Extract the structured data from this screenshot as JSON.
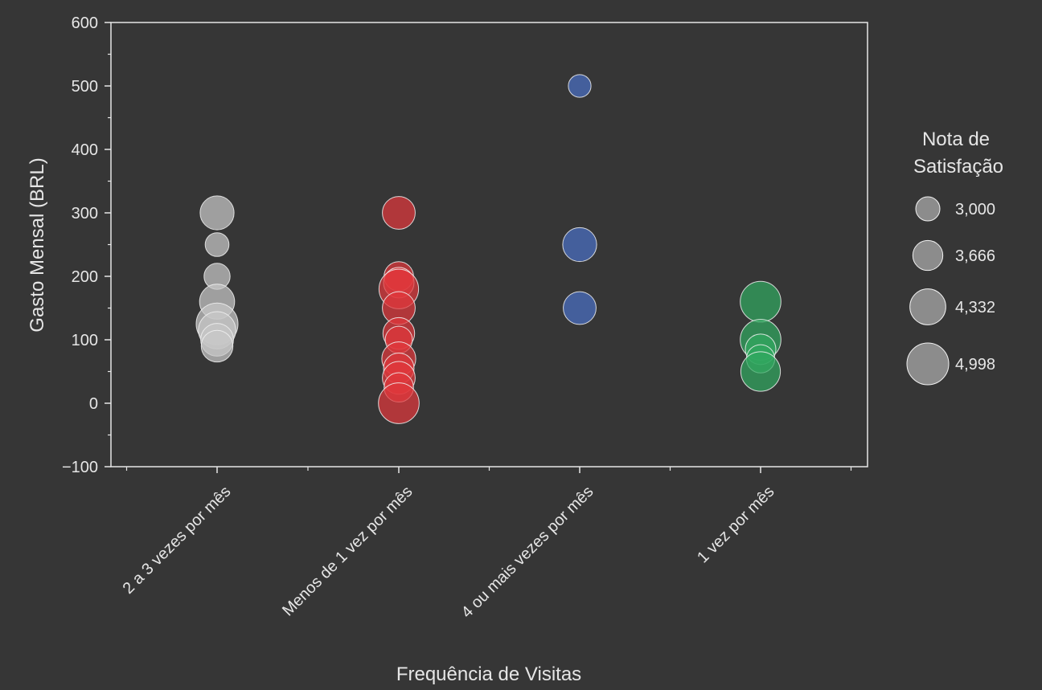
{
  "chart_data": {
    "type": "scatter",
    "xlabel": "Frequência de Visitas",
    "ylabel": "Gasto Mensal (BRL)",
    "categories": [
      "2 a 3 vezes por mês",
      "Menos de 1 vez por mês",
      "4 ou mais vezes por mês",
      "1 vez por mês"
    ],
    "ylim": [
      -100,
      600
    ],
    "yticks": [
      -100,
      0,
      100,
      200,
      300,
      400,
      500,
      600
    ],
    "ytick_labels": [
      "−100",
      "0",
      "100",
      "200",
      "300",
      "400",
      "500",
      "600"
    ],
    "size_variable": "Nota de Satisfação",
    "size_legend": {
      "title_lines": [
        "Nota de",
        "Satisfação"
      ],
      "values": [
        3.0,
        3.666,
        4.332,
        4.998
      ],
      "labels": [
        "3,000",
        "3,666",
        "4,332",
        "4,998"
      ]
    },
    "grid": false,
    "legend_position": "right",
    "series": [
      {
        "category": "2 a 3 vezes por mês",
        "color": "#c8c8c8",
        "points": [
          {
            "y": 300,
            "size": 4.3
          },
          {
            "y": 250,
            "size": 3.4
          },
          {
            "y": 200,
            "size": 3.6
          },
          {
            "y": 160,
            "size": 4.4
          },
          {
            "y": 125,
            "size": 5.0
          },
          {
            "y": 115,
            "size": 4.6
          },
          {
            "y": 100,
            "size": 4.2
          },
          {
            "y": 90,
            "size": 4.1
          }
        ]
      },
      {
        "category": "Menos de 1 vez por mês",
        "color": "#e0383c",
        "points": [
          {
            "y": 300,
            "size": 4.2
          },
          {
            "y": 200,
            "size": 3.9
          },
          {
            "y": 190,
            "size": 4.0
          },
          {
            "y": 180,
            "size": 4.8
          },
          {
            "y": 150,
            "size": 4.2
          },
          {
            "y": 110,
            "size": 4.1
          },
          {
            "y": 100,
            "size": 3.7
          },
          {
            "y": 70,
            "size": 4.3
          },
          {
            "y": 55,
            "size": 4.0
          },
          {
            "y": 40,
            "size": 4.2
          },
          {
            "y": 25,
            "size": 3.9
          },
          {
            "y": 0,
            "size": 4.9
          }
        ]
      },
      {
        "category": "4 ou mais vezes por mês",
        "color": "#4a6fc4",
        "points": [
          {
            "y": 500,
            "size": 3.3
          },
          {
            "y": 250,
            "size": 4.3
          },
          {
            "y": 150,
            "size": 4.2
          }
        ]
      },
      {
        "category": "1 vez por mês",
        "color": "#30a860",
        "points": [
          {
            "y": 160,
            "size": 4.9
          },
          {
            "y": 100,
            "size": 4.9
          },
          {
            "y": 85,
            "size": 4.0
          },
          {
            "y": 70,
            "size": 3.8
          },
          {
            "y": 50,
            "size": 4.8
          }
        ]
      }
    ]
  }
}
